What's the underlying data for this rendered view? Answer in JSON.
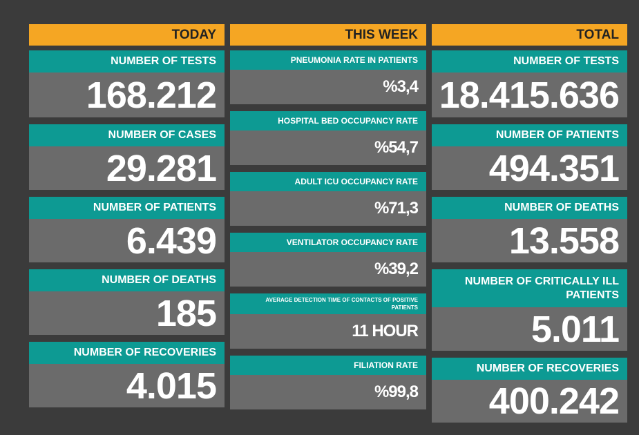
{
  "columns": [
    {
      "header": "TODAY",
      "cards": [
        {
          "label": "NUMBER OF TESTS",
          "value": "168.212"
        },
        {
          "label": "NUMBER OF CASES",
          "value": "29.281"
        },
        {
          "label": "NUMBER OF PATIENTS",
          "value": "6.439"
        },
        {
          "label": "NUMBER OF DEATHS",
          "value": "185"
        },
        {
          "label": "NUMBER OF RECOVERIES",
          "value": "4.015"
        }
      ]
    },
    {
      "header": "THIS WEEK",
      "cards": [
        {
          "label": "PNEUMONIA RATE IN PATIENTS",
          "value": "%3,4"
        },
        {
          "label": "HOSPITAL BED OCCUPANCY RATE",
          "value": "%54,7"
        },
        {
          "label": "ADULT ICU OCCUPANCY RATE",
          "value": "%71,3"
        },
        {
          "label": "VENTILATOR OCCUPANCY RATE",
          "value": "%39,2"
        },
        {
          "label": "AVERAGE DETECTION TIME OF CONTACTS OF POSITIVE PATIENTS",
          "value": "11 HOUR"
        },
        {
          "label": "FILIATION RATE",
          "value": "%99,8"
        }
      ]
    },
    {
      "header": "TOTAL",
      "cards": [
        {
          "label": "NUMBER OF TESTS",
          "value": "18.415.636"
        },
        {
          "label": "NUMBER OF PATIENTS",
          "value": "494.351"
        },
        {
          "label": "NUMBER OF DEATHS",
          "value": "13.558"
        },
        {
          "label": "NUMBER OF CRITICALLY ILL PATIENTS",
          "value": "5.011"
        },
        {
          "label": "NUMBER OF RECOVERIES",
          "value": "400.242"
        }
      ]
    }
  ]
}
